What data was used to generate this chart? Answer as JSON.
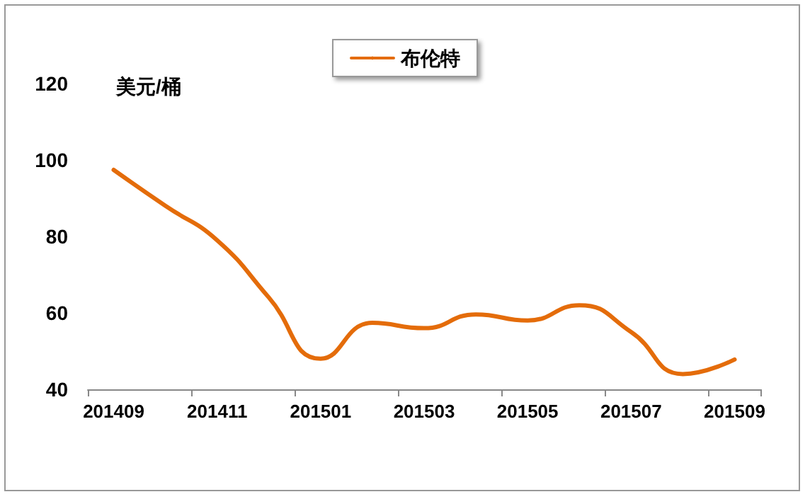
{
  "chart_data": {
    "type": "line",
    "ylabel": "美元/桶",
    "categories": [
      "201409",
      null,
      "201411",
      null,
      "201501",
      null,
      "201503",
      null,
      "201505",
      null,
      "201507",
      null,
      "201509"
    ],
    "series": [
      {
        "name": "布伦特",
        "color": "#e46c0a",
        "values": [
          97.4,
          88,
          79,
          64,
          48,
          57.4,
          56,
          59.6,
          58,
          62,
          55,
          44,
          47.8
        ]
      }
    ],
    "ylim": [
      40,
      120
    ],
    "yticks": [
      40,
      60,
      80,
      100,
      120
    ],
    "grid": false,
    "legend": "top",
    "marker": "none",
    "line_style": "solid"
  }
}
